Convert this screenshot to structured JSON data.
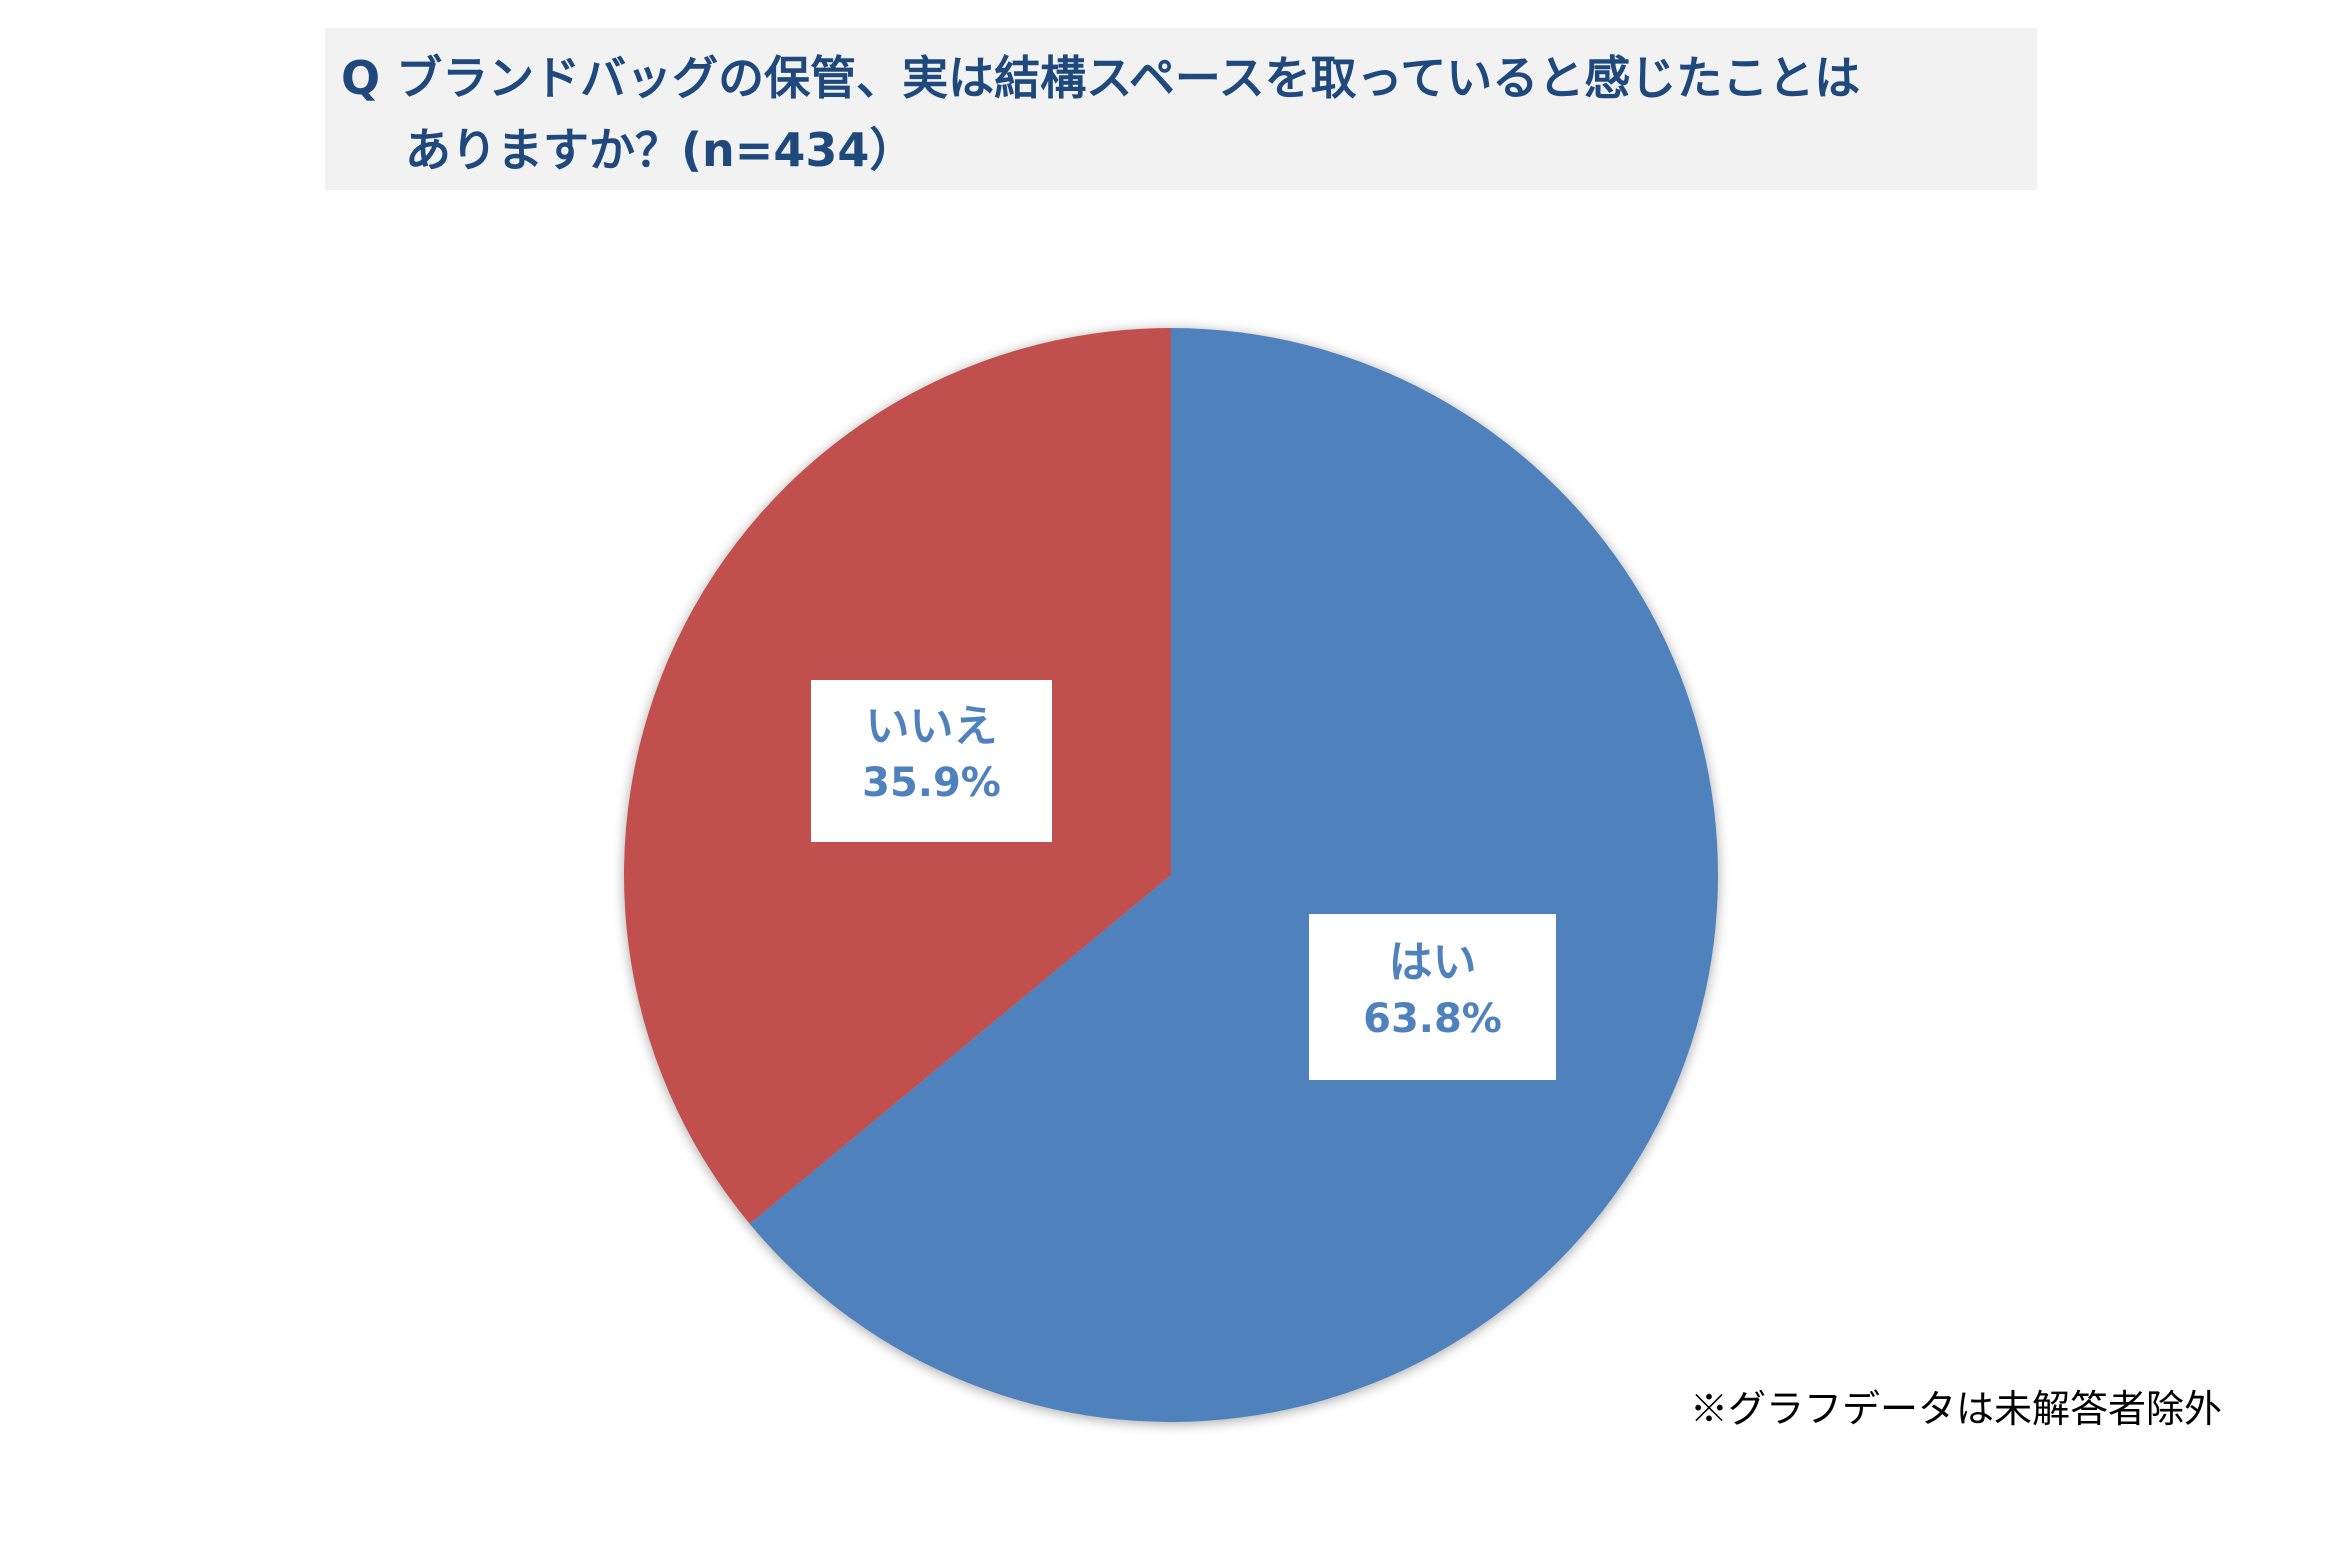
{
  "title": {
    "line1": "Q ブランドバッグの保管、実は結構スペースを取っていると感じたことは",
    "line2": "ありますか？(n=434）"
  },
  "chart_data": {
    "type": "pie",
    "slices": [
      {
        "label": "はい",
        "value": 63.8,
        "value_label": "63.8%",
        "color": "#4f81bd"
      },
      {
        "label": "いいえ",
        "value": 35.9,
        "value_label": "35.9%",
        "color": "#c0504d"
      }
    ]
  },
  "footnote": "※グラフデータは未解答者除外"
}
